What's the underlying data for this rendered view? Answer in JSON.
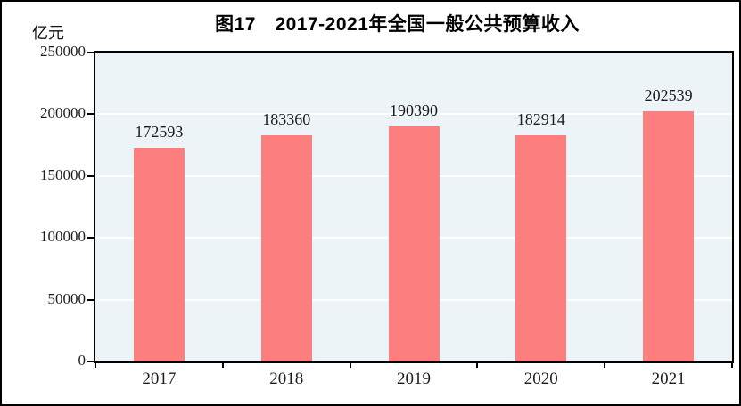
{
  "chart_data": {
    "type": "bar",
    "title": "图17　2017-2021年全国一般公共预算收入",
    "unit": "亿元",
    "categories": [
      "2017",
      "2018",
      "2019",
      "2020",
      "2021"
    ],
    "values": [
      172593,
      183360,
      190390,
      182914,
      202539
    ],
    "xlabel": "",
    "ylabel": "亿元",
    "ylim": [
      0,
      250000
    ],
    "yticks": [
      0,
      50000,
      100000,
      150000,
      200000,
      250000
    ],
    "grid": "horizontal",
    "legend_position": "none",
    "bar_color": "#FC7E7E",
    "plot_background": "#EDF4F7",
    "gridline_color": "#FFFFFF"
  }
}
